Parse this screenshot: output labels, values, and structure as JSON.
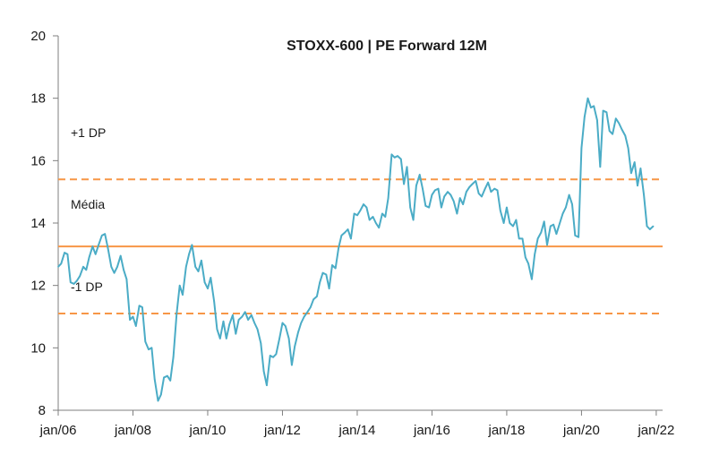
{
  "chart_data": {
    "type": "line",
    "title": "STOXX-600 | PE Forward 12M",
    "xlabel": "",
    "ylabel": "",
    "ylim": [
      8,
      20
    ],
    "yticks": [
      8,
      10,
      12,
      14,
      16,
      18,
      20
    ],
    "xlim": [
      2006.0,
      2022.17
    ],
    "xticks": [
      {
        "x": 2006,
        "label": "jan/06"
      },
      {
        "x": 2008,
        "label": "jan/08"
      },
      {
        "x": 2010,
        "label": "jan/10"
      },
      {
        "x": 2012,
        "label": "jan/12"
      },
      {
        "x": 2014,
        "label": "jan/14"
      },
      {
        "x": 2016,
        "label": "jan/16"
      },
      {
        "x": 2018,
        "label": "jan/18"
      },
      {
        "x": 2020,
        "label": "jan/20"
      },
      {
        "x": 2022,
        "label": "jan/22"
      }
    ],
    "grid": false,
    "colors": {
      "series": "#4bacc6",
      "lines": "#f79646"
    },
    "reference_lines": [
      {
        "label": "+1 DP",
        "y": 15.4,
        "style": "dashed"
      },
      {
        "label": "Média",
        "y": 13.25,
        "style": "solid"
      },
      {
        "label": "-1 DP",
        "y": 11.1,
        "style": "dashed"
      }
    ],
    "series": [
      {
        "name": "",
        "points": [
          [
            2006.0,
            12.6
          ],
          [
            2006.08,
            12.7
          ],
          [
            2006.17,
            13.05
          ],
          [
            2006.25,
            13.0
          ],
          [
            2006.33,
            12.1
          ],
          [
            2006.42,
            12.05
          ],
          [
            2006.5,
            12.15
          ],
          [
            2006.58,
            12.3
          ],
          [
            2006.67,
            12.6
          ],
          [
            2006.75,
            12.5
          ],
          [
            2006.83,
            12.9
          ],
          [
            2006.92,
            13.25
          ],
          [
            2007.0,
            13.0
          ],
          [
            2007.08,
            13.3
          ],
          [
            2007.17,
            13.6
          ],
          [
            2007.25,
            13.65
          ],
          [
            2007.33,
            13.2
          ],
          [
            2007.42,
            12.6
          ],
          [
            2007.5,
            12.4
          ],
          [
            2007.58,
            12.6
          ],
          [
            2007.67,
            12.95
          ],
          [
            2007.75,
            12.5
          ],
          [
            2007.83,
            12.2
          ],
          [
            2007.92,
            10.9
          ],
          [
            2008.0,
            11.0
          ],
          [
            2008.08,
            10.7
          ],
          [
            2008.17,
            11.35
          ],
          [
            2008.25,
            11.3
          ],
          [
            2008.33,
            10.2
          ],
          [
            2008.42,
            9.95
          ],
          [
            2008.5,
            10.0
          ],
          [
            2008.58,
            9.0
          ],
          [
            2008.67,
            8.3
          ],
          [
            2008.75,
            8.5
          ],
          [
            2008.83,
            9.05
          ],
          [
            2008.92,
            9.1
          ],
          [
            2009.0,
            8.95
          ],
          [
            2009.08,
            9.7
          ],
          [
            2009.17,
            11.1
          ],
          [
            2009.25,
            12.0
          ],
          [
            2009.33,
            11.7
          ],
          [
            2009.42,
            12.6
          ],
          [
            2009.5,
            13.0
          ],
          [
            2009.58,
            13.3
          ],
          [
            2009.67,
            12.6
          ],
          [
            2009.75,
            12.45
          ],
          [
            2009.83,
            12.8
          ],
          [
            2009.92,
            12.1
          ],
          [
            2010.0,
            11.9
          ],
          [
            2010.08,
            12.25
          ],
          [
            2010.17,
            11.5
          ],
          [
            2010.25,
            10.6
          ],
          [
            2010.33,
            10.3
          ],
          [
            2010.42,
            10.85
          ],
          [
            2010.5,
            10.3
          ],
          [
            2010.58,
            10.75
          ],
          [
            2010.67,
            11.05
          ],
          [
            2010.75,
            10.45
          ],
          [
            2010.83,
            10.9
          ],
          [
            2010.92,
            11.0
          ],
          [
            2011.0,
            11.15
          ],
          [
            2011.08,
            10.9
          ],
          [
            2011.17,
            11.05
          ],
          [
            2011.25,
            10.8
          ],
          [
            2011.33,
            10.6
          ],
          [
            2011.42,
            10.15
          ],
          [
            2011.5,
            9.25
          ],
          [
            2011.58,
            8.8
          ],
          [
            2011.67,
            9.75
          ],
          [
            2011.75,
            9.7
          ],
          [
            2011.83,
            9.8
          ],
          [
            2011.92,
            10.3
          ],
          [
            2012.0,
            10.8
          ],
          [
            2012.08,
            10.7
          ],
          [
            2012.17,
            10.3
          ],
          [
            2012.25,
            9.45
          ],
          [
            2012.33,
            10.05
          ],
          [
            2012.42,
            10.5
          ],
          [
            2012.5,
            10.8
          ],
          [
            2012.58,
            11.0
          ],
          [
            2012.67,
            11.15
          ],
          [
            2012.75,
            11.3
          ],
          [
            2012.83,
            11.55
          ],
          [
            2012.92,
            11.65
          ],
          [
            2013.0,
            12.1
          ],
          [
            2013.08,
            12.4
          ],
          [
            2013.17,
            12.35
          ],
          [
            2013.25,
            11.9
          ],
          [
            2013.33,
            12.65
          ],
          [
            2013.42,
            12.55
          ],
          [
            2013.5,
            13.2
          ],
          [
            2013.58,
            13.6
          ],
          [
            2013.67,
            13.7
          ],
          [
            2013.75,
            13.8
          ],
          [
            2013.83,
            13.5
          ],
          [
            2013.92,
            14.3
          ],
          [
            2014.0,
            14.25
          ],
          [
            2014.08,
            14.4
          ],
          [
            2014.17,
            14.6
          ],
          [
            2014.25,
            14.5
          ],
          [
            2014.33,
            14.1
          ],
          [
            2014.42,
            14.2
          ],
          [
            2014.5,
            14.0
          ],
          [
            2014.58,
            13.85
          ],
          [
            2014.67,
            14.3
          ],
          [
            2014.75,
            14.2
          ],
          [
            2014.83,
            14.8
          ],
          [
            2014.92,
            16.2
          ],
          [
            2015.0,
            16.1
          ],
          [
            2015.08,
            16.15
          ],
          [
            2015.17,
            16.05
          ],
          [
            2015.25,
            15.25
          ],
          [
            2015.33,
            15.8
          ],
          [
            2015.42,
            14.5
          ],
          [
            2015.5,
            14.1
          ],
          [
            2015.58,
            15.2
          ],
          [
            2015.67,
            15.55
          ],
          [
            2015.75,
            15.1
          ],
          [
            2015.83,
            14.55
          ],
          [
            2015.92,
            14.5
          ],
          [
            2016.0,
            14.9
          ],
          [
            2016.08,
            15.05
          ],
          [
            2016.17,
            15.1
          ],
          [
            2016.25,
            14.5
          ],
          [
            2016.33,
            14.85
          ],
          [
            2016.42,
            15.0
          ],
          [
            2016.5,
            14.9
          ],
          [
            2016.58,
            14.7
          ],
          [
            2016.67,
            14.3
          ],
          [
            2016.75,
            14.8
          ],
          [
            2016.83,
            14.6
          ],
          [
            2016.92,
            15.0
          ],
          [
            2017.0,
            15.15
          ],
          [
            2017.08,
            15.25
          ],
          [
            2017.17,
            15.35
          ],
          [
            2017.25,
            14.95
          ],
          [
            2017.33,
            14.85
          ],
          [
            2017.42,
            15.1
          ],
          [
            2017.5,
            15.3
          ],
          [
            2017.58,
            15.0
          ],
          [
            2017.67,
            15.1
          ],
          [
            2017.75,
            15.05
          ],
          [
            2017.83,
            14.4
          ],
          [
            2017.92,
            14.0
          ],
          [
            2018.0,
            14.5
          ],
          [
            2018.08,
            14.0
          ],
          [
            2018.17,
            13.9
          ],
          [
            2018.25,
            14.1
          ],
          [
            2018.33,
            13.5
          ],
          [
            2018.42,
            13.5
          ],
          [
            2018.5,
            12.9
          ],
          [
            2018.58,
            12.7
          ],
          [
            2018.67,
            12.2
          ],
          [
            2018.75,
            13.0
          ],
          [
            2018.83,
            13.5
          ],
          [
            2018.92,
            13.7
          ],
          [
            2019.0,
            14.05
          ],
          [
            2019.08,
            13.3
          ],
          [
            2019.17,
            13.9
          ],
          [
            2019.25,
            13.95
          ],
          [
            2019.33,
            13.65
          ],
          [
            2019.42,
            14.0
          ],
          [
            2019.5,
            14.3
          ],
          [
            2019.58,
            14.5
          ],
          [
            2019.67,
            14.9
          ],
          [
            2019.75,
            14.6
          ],
          [
            2019.83,
            13.6
          ],
          [
            2019.92,
            13.55
          ],
          [
            2020.0,
            16.4
          ],
          [
            2020.08,
            17.4
          ],
          [
            2020.17,
            18.0
          ],
          [
            2020.25,
            17.7
          ],
          [
            2020.33,
            17.75
          ],
          [
            2020.42,
            17.3
          ],
          [
            2020.5,
            15.8
          ],
          [
            2020.58,
            17.6
          ],
          [
            2020.67,
            17.55
          ],
          [
            2020.75,
            16.95
          ],
          [
            2020.83,
            16.85
          ],
          [
            2020.92,
            17.35
          ],
          [
            2021.0,
            17.2
          ],
          [
            2021.08,
            17.0
          ],
          [
            2021.17,
            16.8
          ],
          [
            2021.25,
            16.4
          ],
          [
            2021.33,
            15.6
          ],
          [
            2021.42,
            15.95
          ],
          [
            2021.5,
            15.2
          ],
          [
            2021.58,
            15.75
          ],
          [
            2021.67,
            14.9
          ],
          [
            2021.75,
            13.9
          ],
          [
            2021.83,
            13.8
          ],
          [
            2021.92,
            13.9
          ]
        ]
      }
    ]
  }
}
